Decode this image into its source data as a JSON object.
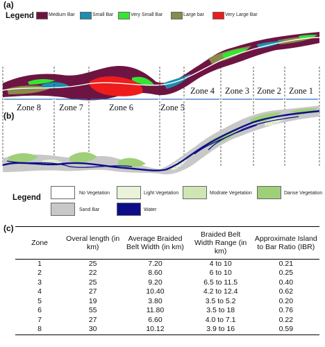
{
  "panels": {
    "a": "(a)",
    "b": "(b)",
    "c": "(c)"
  },
  "legend_a": {
    "title": "Legend",
    "items": [
      {
        "label": "Medium Bar",
        "color": "#6e1442"
      },
      {
        "label": "Small Bar",
        "color": "#1b8fb0"
      },
      {
        "label": "Very Small Bar",
        "color": "#33e633"
      },
      {
        "label": "Large bar",
        "color": "#8a8a4c"
      },
      {
        "label": "Very Large Bar",
        "color": "#ee1c1c"
      }
    ]
  },
  "zones": [
    "Zone 8",
    "Zone 7",
    "Zone 6",
    "Zone 5",
    "Zone 4",
    "Zone 3",
    "Zone 2",
    "Zone 1"
  ],
  "legend_b": {
    "title": "Legend",
    "items": [
      {
        "label": "No Vegetation",
        "color": "#ffffff"
      },
      {
        "label": "Light Vegetation",
        "color": "#e9f3d9"
      },
      {
        "label": "Modrate Vegetation",
        "color": "#cfe6b3"
      },
      {
        "label": "Danse Vegetation",
        "color": "#9fcf78"
      },
      {
        "label": "Sand Bar",
        "color": "#c8c8c8"
      },
      {
        "label": "Water",
        "color": "#0d0d8a"
      }
    ]
  },
  "table": {
    "headers": [
      "Zone",
      "Overal length (in km)",
      "Average Braided Belt Width (in km)",
      "Braided Belt Width Range (in km)",
      "Approximate Island to Bar Ratio (IBR)"
    ],
    "rows": [
      [
        "1",
        "25",
        "7.20",
        "4 to 10",
        "0.21"
      ],
      [
        "2",
        "22",
        "8.60",
        "6 to 10",
        "0.25"
      ],
      [
        "3",
        "25",
        "9.20",
        "6.5 to 11.5",
        "0.40"
      ],
      [
        "4",
        "27",
        "10.40",
        "4.2 to 12.4",
        "0.62"
      ],
      [
        "5",
        "19",
        "3.80",
        "3.5 to 5.2",
        "0.20"
      ],
      [
        "6",
        "55",
        "11.80",
        "3.5 to 18",
        "0.76"
      ],
      [
        "7",
        "27",
        "6.60",
        "4.0 to 7.1",
        "0.22"
      ],
      [
        "8",
        "30",
        "10.12",
        "3.9 to 16",
        "0.59"
      ]
    ]
  }
}
